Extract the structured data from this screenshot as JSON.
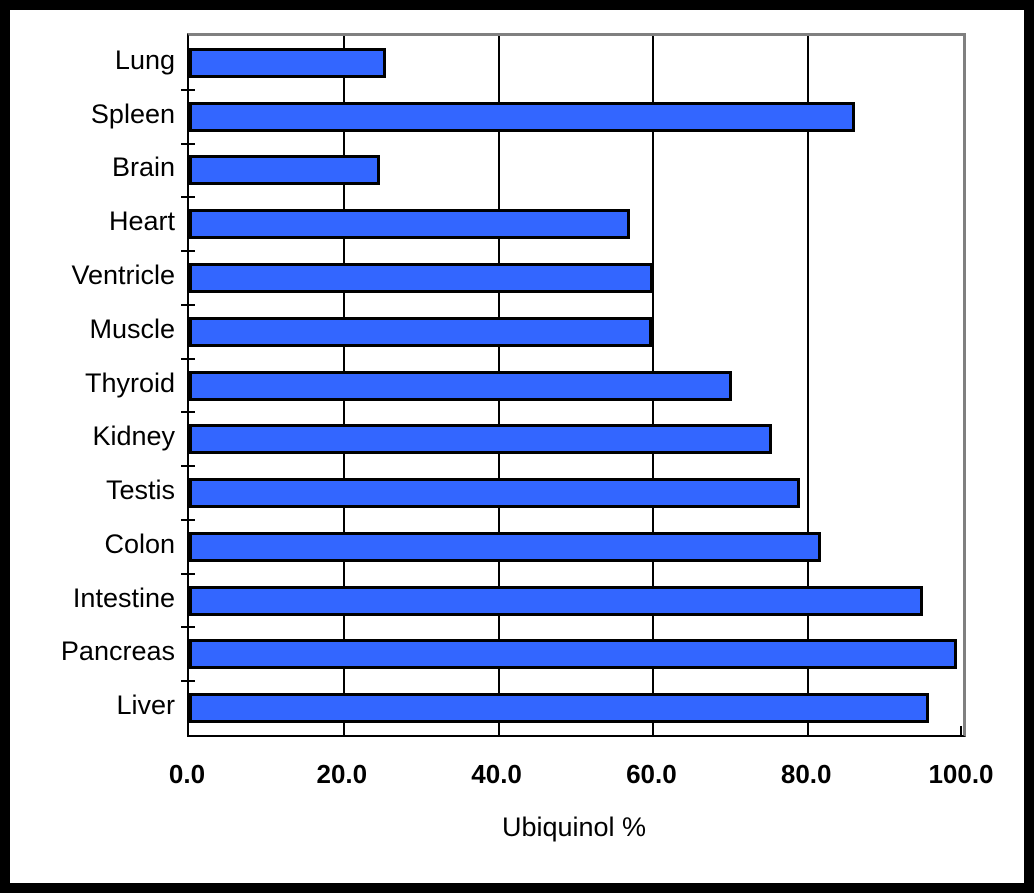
{
  "chart_data": {
    "type": "bar",
    "orientation": "horizontal",
    "title": "",
    "xlabel": "Ubiquinol %",
    "ylabel": "",
    "xlim": [
      0,
      100
    ],
    "grid": true,
    "legend": false,
    "categories": [
      "Lung",
      "Spleen",
      "Brain",
      "Heart",
      "Ventricle",
      "Muscle",
      "Thyroid",
      "Kidney",
      "Testis",
      "Colon",
      "Intestine",
      "Pancreas",
      "Liver"
    ],
    "values": [
      25.5,
      86.0,
      24.7,
      57.0,
      59.9,
      59.8,
      70.1,
      75.3,
      78.9,
      81.7,
      94.8,
      99.2,
      95.6
    ],
    "xticks": [
      "0.0",
      "20.0",
      "40.0",
      "60.0",
      "80.0",
      "100.0"
    ],
    "xtick_values": [
      0,
      20,
      40,
      60,
      80,
      100
    ],
    "colors": {
      "bar_fill": "#3366FF",
      "bar_border": "#000000",
      "gridline": "#000000",
      "plot_border_top_right": "#808080",
      "axis": "#000000",
      "background": "#FFFFFF",
      "outer_border": "#000000"
    }
  }
}
